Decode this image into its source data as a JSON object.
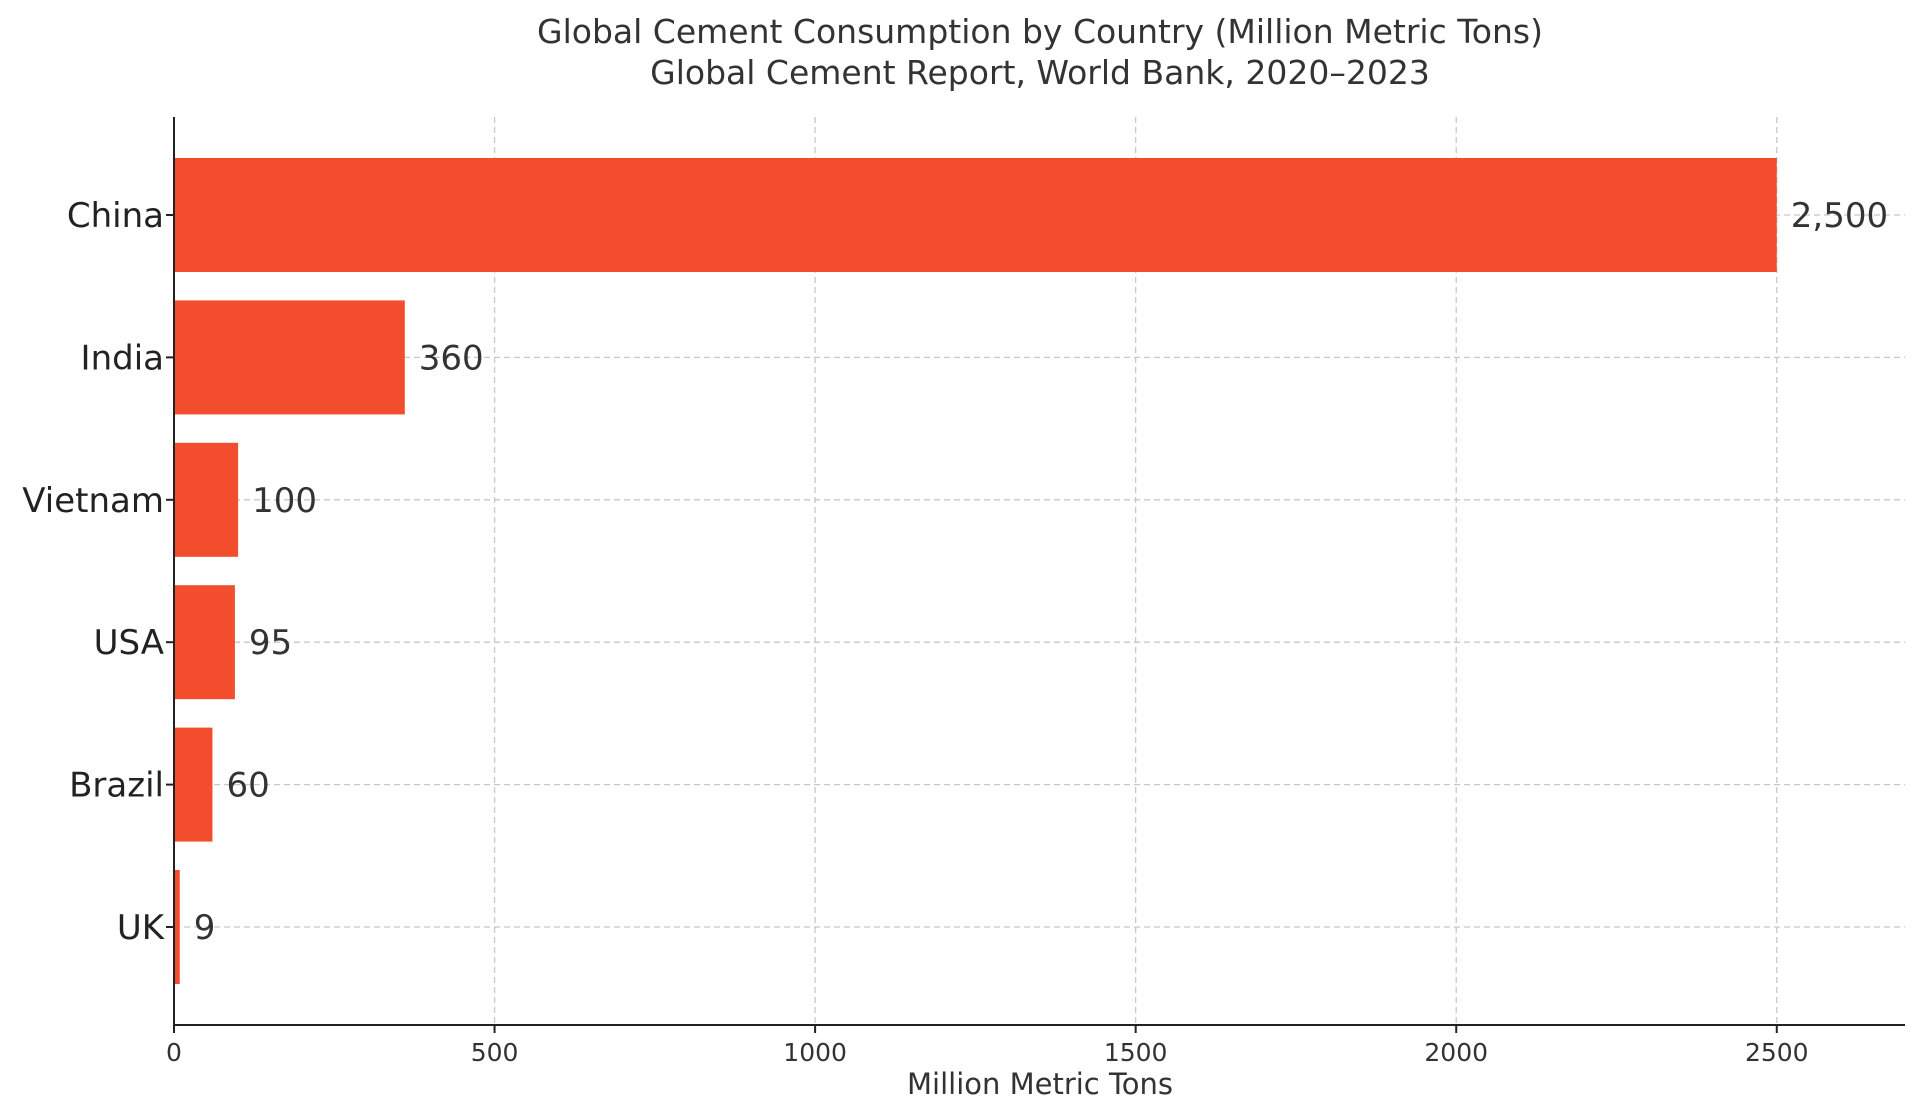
{
  "chart_data": {
    "type": "bar",
    "orientation": "horizontal",
    "title": "Global Cement Consumption by Country (Million Metric Tons)",
    "subtitle": "Global Cement Report, World Bank, 2020–2023",
    "xlabel": "Million Metric Tons",
    "ylabel": "",
    "xlim": [
      0,
      2700
    ],
    "xticks": [
      0,
      500,
      1000,
      1500,
      2000,
      2500
    ],
    "xtick_labels": [
      "0",
      "500",
      "1000",
      "1500",
      "2000",
      "2500"
    ],
    "categories": [
      "China",
      "India",
      "Vietnam",
      "USA",
      "Brazil",
      "UK"
    ],
    "values": [
      2500,
      360,
      100,
      95,
      60,
      9
    ],
    "data_labels": [
      "2,500",
      "360",
      "100",
      "95",
      "60",
      "9"
    ],
    "bar_color": "#f24e2e",
    "grid": true,
    "grid_style": "dashed"
  }
}
